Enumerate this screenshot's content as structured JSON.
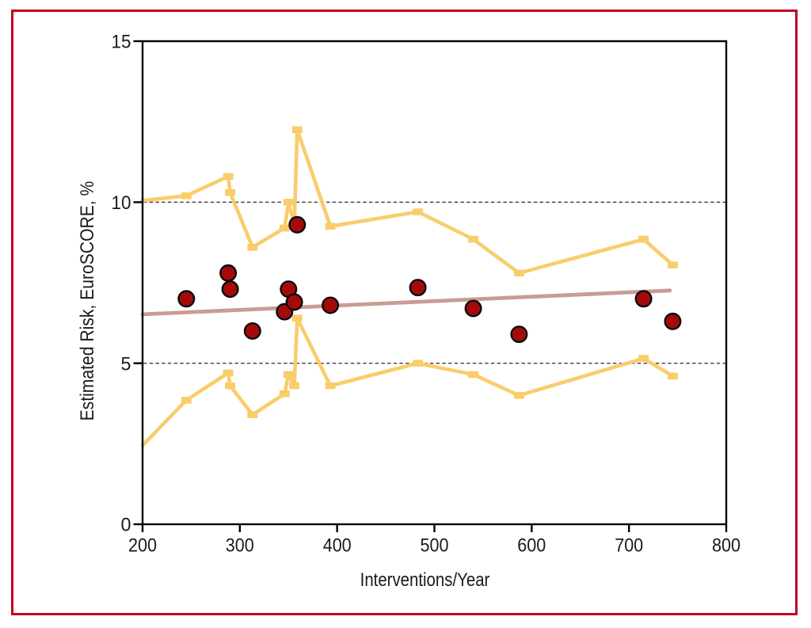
{
  "figure": {
    "background": "#ffffff",
    "border_color": "#c00021",
    "frame_color": "#000000",
    "tick_text_color": "#1a1a1a",
    "gridline_color": "#3c3c3c"
  },
  "chart_data": {
    "type": "scatter",
    "title": "",
    "xlabel": "Interventions/Year",
    "ylabel": "Estimated Risk, EuroSCORE, %",
    "xlim": [
      200,
      800
    ],
    "ylim": [
      0,
      15
    ],
    "x_ticks": [
      200,
      300,
      400,
      500,
      600,
      700,
      800
    ],
    "y_ticks": [
      0,
      5,
      10,
      15
    ],
    "gridlines_y": [
      5,
      10
    ],
    "grid_style": "dashed",
    "legend": "none",
    "x": [
      245,
      288,
      290,
      313,
      346,
      350,
      356,
      359,
      393,
      483,
      540,
      587,
      715,
      745
    ],
    "series": [
      {
        "name": "upper-confidence-limit",
        "kind": "band-line",
        "color": "#f9cd6c",
        "marker": "square",
        "lead_point": {
          "x": 200,
          "y": 10.05
        },
        "values": [
          10.2,
          10.8,
          10.3,
          8.6,
          9.2,
          10.0,
          9.3,
          12.25,
          9.25,
          9.7,
          8.85,
          7.8,
          8.85,
          8.05
        ]
      },
      {
        "name": "lower-confidence-limit",
        "kind": "band-line",
        "color": "#f9cd6c",
        "marker": "square",
        "lead_point": {
          "x": 200,
          "y": 2.45
        },
        "values": [
          3.85,
          4.7,
          4.3,
          3.4,
          4.05,
          4.65,
          4.3,
          6.4,
          4.3,
          5.0,
          4.65,
          4.0,
          5.15,
          4.6
        ]
      },
      {
        "name": "trend-line",
        "kind": "trendline",
        "color": "#c99c93",
        "points": [
          {
            "x": 200,
            "y": 6.52
          },
          {
            "x": 742,
            "y": 7.26
          }
        ]
      },
      {
        "name": "estimated-risk-points",
        "kind": "scatter",
        "color": "#a50a0a",
        "edge_color": "#0b0b0b",
        "values": [
          7.0,
          7.8,
          7.3,
          6.0,
          6.6,
          7.3,
          6.9,
          9.3,
          6.8,
          7.35,
          6.7,
          5.9,
          7.0,
          6.3
        ]
      }
    ]
  }
}
